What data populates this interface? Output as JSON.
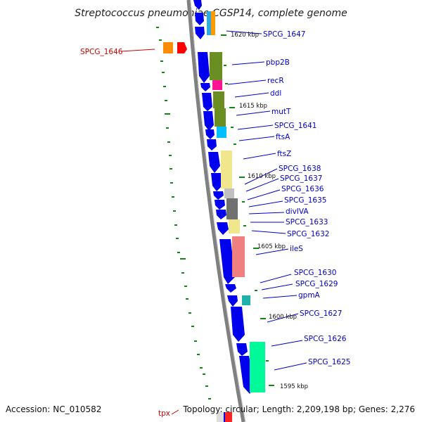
{
  "title": "Streptococcus pneumoniae CGSP14, complete genome",
  "footer": {
    "accession": "Accession: NC_010582",
    "topology": "Topology: circular; Length: 2,209,198 bp; Genes: 2,276"
  },
  "colors": {
    "backbone": "#808080",
    "gene_arrow": "#0000ee",
    "label_blue": "#0000cc",
    "label_red": "#cc0000",
    "tick_green": "#118811"
  },
  "scale_labels": [
    "1620 kbp",
    "1615 kbp",
    "1610 kbp",
    "1605 kbp",
    "1600 kbp",
    "1595 kbp"
  ],
  "gene_labels": [
    {
      "name": "SPCG_1647",
      "color": "blue"
    },
    {
      "name": "SPCG_1646",
      "color": "red"
    },
    {
      "name": "pbp2B",
      "color": "blue"
    },
    {
      "name": "recR",
      "color": "blue"
    },
    {
      "name": "ddl",
      "color": "blue"
    },
    {
      "name": "mutT",
      "color": "blue"
    },
    {
      "name": "SPCG_1641",
      "color": "blue"
    },
    {
      "name": "ftsA",
      "color": "blue"
    },
    {
      "name": "ftsZ",
      "color": "blue"
    },
    {
      "name": "SPCG_1638",
      "color": "blue"
    },
    {
      "name": "SPCG_1637",
      "color": "blue"
    },
    {
      "name": "SPCG_1636",
      "color": "blue"
    },
    {
      "name": "SPCG_1635",
      "color": "blue"
    },
    {
      "name": "divIVA",
      "color": "blue"
    },
    {
      "name": "SPCG_1633",
      "color": "blue"
    },
    {
      "name": "SPCG_1632",
      "color": "blue"
    },
    {
      "name": "ileS",
      "color": "blue"
    },
    {
      "name": "SPCG_1630",
      "color": "blue"
    },
    {
      "name": "SPCG_1629",
      "color": "blue"
    },
    {
      "name": "gpmA",
      "color": "blue"
    },
    {
      "name": "SPCG_1627",
      "color": "blue"
    },
    {
      "name": "SPCG_1626",
      "color": "blue"
    },
    {
      "name": "SPCG_1625",
      "color": "blue"
    },
    {
      "name": "tpx",
      "color": "red"
    }
  ]
}
